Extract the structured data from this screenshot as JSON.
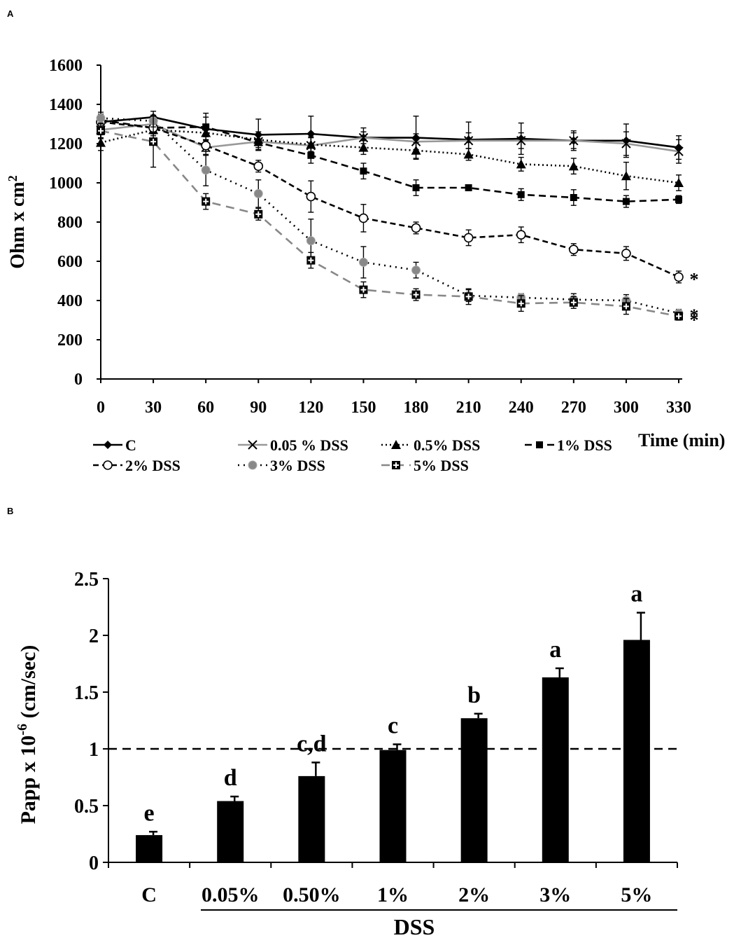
{
  "panels": {
    "a_label": "A",
    "b_label": "B"
  },
  "chart_data": [
    {
      "type": "line",
      "panel": "A",
      "title": "",
      "xlabel": "Time (min)",
      "ylabel": "Ohm x cm",
      "ylabel_sup": "2",
      "x": [
        0,
        30,
        60,
        90,
        120,
        150,
        180,
        210,
        240,
        270,
        300,
        330
      ],
      "xlim": [
        0,
        330
      ],
      "ylim": [
        0,
        1600
      ],
      "yticks": [
        0,
        200,
        400,
        600,
        800,
        1000,
        1200,
        1400,
        1600
      ],
      "legend_position": "bottom",
      "series": [
        {
          "name": "C",
          "color": "#000000",
          "dash": "",
          "marker": "diamond",
          "values": [
            1310,
            1335,
            1275,
            1245,
            1250,
            1230,
            1230,
            1220,
            1225,
            1215,
            1215,
            1180
          ],
          "errors": [
            40,
            30,
            80,
            80,
            90,
            50,
            110,
            90,
            80,
            50,
            85,
            60
          ]
        },
        {
          "name": "0.05 % DSS",
          "color": "#999999",
          "dash": "",
          "marker": "x",
          "values": [
            1270,
            1300,
            1180,
            1210,
            1190,
            1230,
            1210,
            1215,
            1215,
            1215,
            1200,
            1160
          ],
          "errors": [
            40,
            30,
            40,
            40,
            40,
            30,
            40,
            40,
            40,
            40,
            60,
            60
          ]
        },
        {
          "name": "0.5% DSS",
          "color": "#000000",
          "dash": "2,4",
          "marker": "triangle",
          "values": [
            1205,
            1270,
            1255,
            1220,
            1195,
            1180,
            1165,
            1145,
            1095,
            1085,
            1035,
            1000
          ],
          "errors": [
            40,
            30,
            40,
            40,
            40,
            35,
            40,
            30,
            35,
            40,
            70,
            40
          ]
        },
        {
          "name": "1% DSS",
          "color": "#000000",
          "dash": "10,6",
          "marker": "square",
          "values": [
            1320,
            1280,
            1285,
            1205,
            1140,
            1060,
            975,
            975,
            940,
            925,
            905,
            915
          ],
          "errors": [
            30,
            30,
            50,
            40,
            40,
            40,
            40,
            15,
            30,
            40,
            30,
            20
          ]
        },
        {
          "name": "2% DSS",
          "color": "#000000",
          "dash": "8,5",
          "marker": "circle-open",
          "values": [
            1310,
            1280,
            1190,
            1085,
            930,
            820,
            770,
            720,
            735,
            660,
            640,
            520
          ],
          "errors": [
            40,
            30,
            30,
            30,
            80,
            70,
            30,
            40,
            40,
            30,
            35,
            30
          ]
        },
        {
          "name": "3% DSS",
          "color": "#000000",
          "dash": "2,6",
          "marker": "circle-gray",
          "values": [
            1330,
            1315,
            1065,
            945,
            705,
            595,
            555,
            425,
            415,
            405,
            400,
            335
          ],
          "errors": [
            30,
            30,
            80,
            70,
            110,
            80,
            40,
            30,
            20,
            30,
            30,
            20
          ]
        },
        {
          "name": "5% DSS",
          "color": "#888888",
          "dash": "12,8",
          "marker": "square-plus",
          "values": [
            1265,
            1210,
            905,
            840,
            605,
            455,
            430,
            420,
            385,
            390,
            370,
            320
          ],
          "errors": [
            40,
            130,
            40,
            30,
            40,
            40,
            30,
            40,
            40,
            30,
            40,
            20
          ]
        }
      ],
      "annotations": [
        "*",
        "*",
        "*"
      ]
    },
    {
      "type": "bar",
      "panel": "B",
      "title": "",
      "xlabel": "DSS",
      "ylabel": "Papp x 10",
      "ylabel_sup": "-6",
      "ylabel_unit": " (cm/sec)",
      "categories": [
        "C",
        "0.05%",
        "0.50%",
        "1%",
        "2%",
        "3%",
        "5%"
      ],
      "values": [
        0.24,
        0.54,
        0.76,
        0.99,
        1.27,
        1.63,
        1.96
      ],
      "errors": [
        0.03,
        0.04,
        0.12,
        0.05,
        0.04,
        0.08,
        0.24
      ],
      "letters": [
        "e",
        "d",
        "c,d",
        "c",
        "b",
        "a",
        "a"
      ],
      "ylim": [
        0,
        2.5
      ],
      "yticks": [
        "0",
        "0.5",
        "1",
        "1.5",
        "2",
        "2.5"
      ],
      "ytick_values": [
        0,
        0.5,
        1,
        1.5,
        2,
        2.5
      ],
      "reference_line": 1,
      "bar_color": "#000000"
    }
  ]
}
